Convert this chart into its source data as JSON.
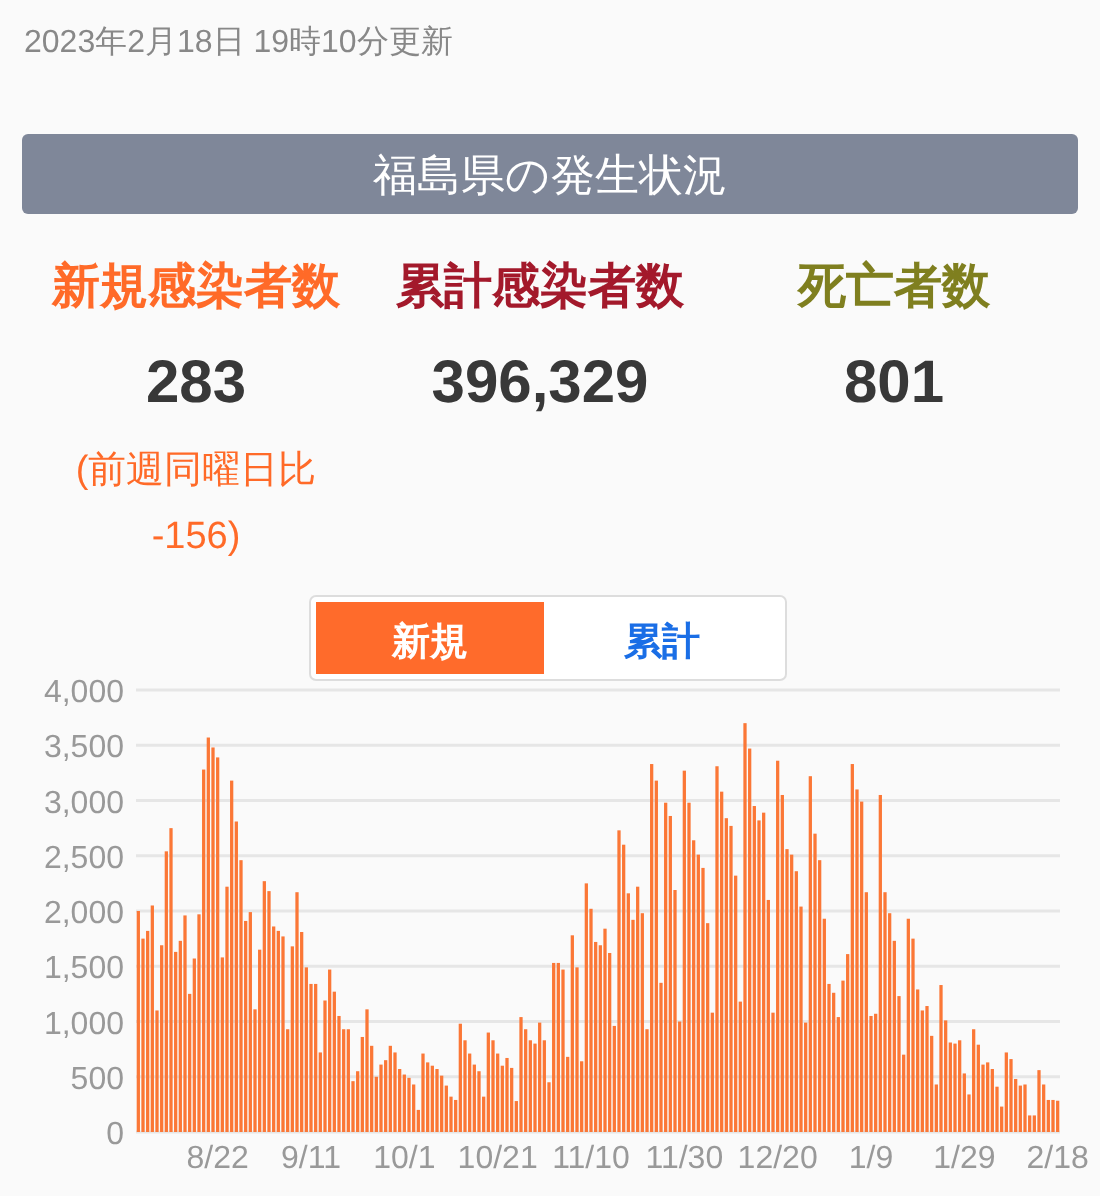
{
  "chart_data": [
    {
      "type": "other",
      "title": "福島県の発生状況",
      "annotations": [
        "2023年2月18日 19時10分更新",
        "(前週同曜日比 -156)",
        "283",
        "396,329",
        "801"
      ],
      "categories": [
        "新規感染者数",
        "累計感染者数",
        "死亡者数"
      ],
      "colors": [
        "#ff6a28",
        "#a3192b",
        "#7f7f1f"
      ]
    },
    {
      "type": "bar",
      "color": "#fb7736",
      "ylim": [
        0,
        4000
      ],
      "yticks": [
        0,
        {
          "value": 500,
          "label": "500"
        },
        {
          "value": 1000,
          "label": "1,000"
        },
        {
          "value": 1500,
          "label": "1,500"
        },
        {
          "value": 2000,
          "label": "2,000"
        },
        {
          "value": 2500,
          "label": "2,500"
        },
        {
          "value": 3000,
          "label": "3,000"
        },
        {
          "value": 3500,
          "label": "3,500"
        },
        {
          "value": 4000,
          "label": "4,000"
        }
      ],
      "grid": "y",
      "annotations": [
        "新規",
        "累計"
      ],
      "categories": [
        null,
        null,
        null,
        null,
        null,
        null,
        null,
        null,
        null,
        null,
        null,
        null,
        null,
        null,
        null,
        null,
        null,
        "8/22",
        null,
        null,
        null,
        null,
        null,
        null,
        null,
        null,
        null,
        null,
        null,
        null,
        null,
        null,
        null,
        null,
        null,
        null,
        null,
        "9/11",
        null,
        null,
        null,
        null,
        null,
        null,
        null,
        null,
        null,
        null,
        null,
        null,
        null,
        null,
        null,
        null,
        null,
        null,
        null,
        "10/1",
        null,
        null,
        null,
        null,
        null,
        null,
        null,
        null,
        null,
        null,
        null,
        null,
        null,
        null,
        null,
        null,
        null,
        null,
        null,
        "10/21",
        null,
        null,
        null,
        null,
        null,
        null,
        null,
        null,
        null,
        null,
        null,
        null,
        null,
        null,
        null,
        null,
        null,
        null,
        null,
        "11/10",
        null,
        null,
        null,
        null,
        null,
        null,
        null,
        null,
        null,
        null,
        null,
        null,
        null,
        null,
        null,
        null,
        null,
        null,
        null,
        "11/30",
        null,
        null,
        null,
        null,
        null,
        null,
        null,
        null,
        null,
        null,
        null,
        null,
        null,
        null,
        null,
        null,
        null,
        null,
        null,
        "12/20",
        null,
        null,
        null,
        null,
        null,
        null,
        null,
        null,
        null,
        null,
        null,
        null,
        null,
        null,
        null,
        null,
        null,
        null,
        null,
        "1/9",
        null,
        null,
        null,
        null,
        null,
        null,
        null,
        null,
        null,
        null,
        null,
        null,
        null,
        null,
        null,
        null,
        null,
        null,
        null,
        "1/29",
        null,
        null,
        null,
        null,
        null,
        null,
        null,
        null,
        null,
        null,
        null,
        null,
        null,
        null,
        null,
        null,
        null,
        null,
        null,
        "2/18"
      ],
      "values": [
        2000,
        1750,
        1820,
        2050,
        1100,
        1690,
        2540,
        2750,
        1630,
        1730,
        1960,
        1250,
        1570,
        1970,
        3280,
        3570,
        3480,
        3390,
        1580,
        2220,
        3180,
        2810,
        2460,
        1910,
        1990,
        1110,
        1650,
        2270,
        2180,
        1860,
        1820,
        1770,
        930,
        1680,
        2170,
        1810,
        1490,
        1340,
        1340,
        720,
        1190,
        1470,
        1270,
        1050,
        930,
        930,
        460,
        550,
        860,
        1110,
        780,
        500,
        610,
        650,
        780,
        720,
        570,
        520,
        490,
        430,
        200,
        710,
        630,
        600,
        570,
        510,
        420,
        320,
        290,
        980,
        830,
        710,
        610,
        550,
        320,
        900,
        830,
        710,
        600,
        670,
        580,
        280,
        1040,
        930,
        830,
        800,
        990,
        830,
        450,
        1530,
        1530,
        1470,
        680,
        1780,
        1490,
        640,
        2250,
        2020,
        1720,
        1690,
        1840,
        1620,
        960,
        2730,
        2600,
        2160,
        1920,
        2220,
        1980,
        930,
        3330,
        3180,
        1350,
        2980,
        2860,
        2190,
        1000,
        3270,
        2980,
        2640,
        2510,
        2390,
        1890,
        1080,
        3310,
        3080,
        2840,
        2770,
        2320,
        1180,
        3700,
        3470,
        2950,
        2820,
        2890,
        2100,
        1080,
        3360,
        3050,
        2560,
        2510,
        2360,
        2040,
        990,
        3220,
        2700,
        2460,
        1930,
        1340,
        1260,
        1040,
        1370,
        1610,
        3330,
        3100,
        2990,
        2170,
        1050,
        1070,
        3050,
        2170,
        1980,
        1730,
        1230,
        700,
        1930,
        1750,
        1290,
        1100,
        1140,
        870,
        430,
        1330,
        1010,
        810,
        800,
        830,
        530,
        340,
        930,
        790,
        610,
        630,
        570,
        410,
        230,
        720,
        660,
        480,
        420,
        430,
        150,
        150,
        560,
        430,
        290,
        290,
        283
      ]
    }
  ]
}
